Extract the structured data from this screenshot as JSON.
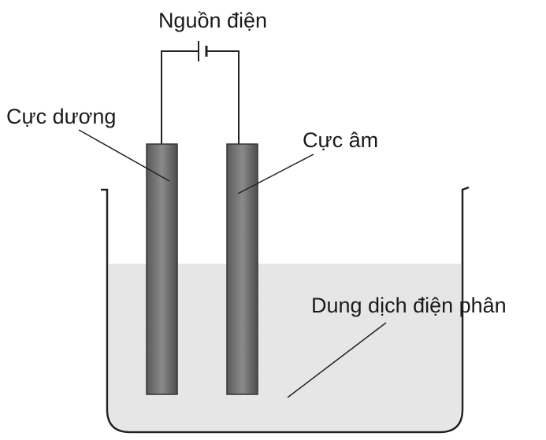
{
  "title": "Nguồn điện",
  "labels": {
    "anode": "Cực dương",
    "cathode": "Cực âm",
    "electrolyte": "Dung dịch điện phân"
  }
}
